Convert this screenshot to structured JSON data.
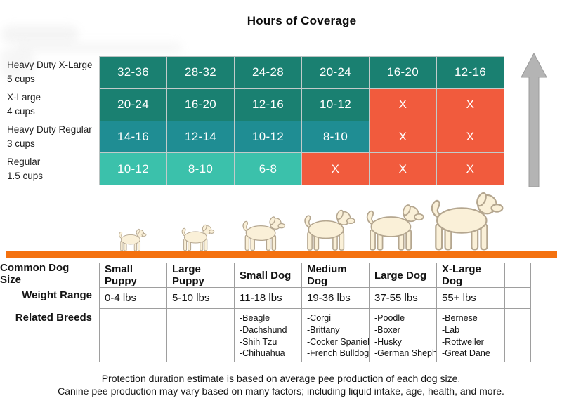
{
  "title": "Hours of Coverage",
  "colors": {
    "teal_dark": "#1a8071",
    "teal_mid": "#1f8d93",
    "teal_light": "#3bc1ab",
    "na_cell": "#f15b3d",
    "ground_bar": "#f4710f",
    "arrow_gray": "#b4b4b4",
    "table_border": "#9e9e9e",
    "dog_fill": "#faf0d8",
    "dog_outline": "#b4a68f"
  },
  "heatmap": {
    "na_symbol": "X",
    "rows": [
      {
        "label": "Heavy Duty X-Large",
        "sublabel": "5 cups",
        "color": "#1a8071",
        "cells": [
          "32-36",
          "28-32",
          "24-28",
          "20-24",
          "16-20",
          "12-16"
        ]
      },
      {
        "label": "X-Large",
        "sublabel": "4 cups",
        "color": "#1a8071",
        "cells": [
          "20-24",
          "16-20",
          "12-16",
          "10-12",
          "X",
          "X"
        ]
      },
      {
        "label": "Heavy Duty Regular",
        "sublabel": "3 cups",
        "color": "#1f8d93",
        "cells": [
          "14-16",
          "12-14",
          "10-12",
          "8-10",
          "X",
          "X"
        ]
      },
      {
        "label": "Regular",
        "sublabel": "1.5 cups",
        "color": "#3bc1ab",
        "cells": [
          "10-12",
          "8-10",
          "6-8",
          "X",
          "X",
          "X"
        ]
      }
    ]
  },
  "dogs": [
    "small-puppy-dog-illustration",
    "large-puppy-dog-illustration",
    "small-dog-illustration",
    "medium-dog-illustration",
    "large-dog-illustration",
    "x-large-dog-illustration"
  ],
  "dog_table": {
    "row_labels": [
      "Common Dog Size",
      "Weight Range",
      "Related Breeds"
    ],
    "columns": [
      {
        "name": "Small Puppy",
        "weight": "0-4 lbs",
        "breeds": []
      },
      {
        "name": "Large Puppy",
        "weight": "5-10 lbs",
        "breeds": []
      },
      {
        "name": "Small Dog",
        "weight": "11-18 lbs",
        "breeds": [
          "-Beagle",
          "-Dachshund",
          "-Shih Tzu",
          "-Chihuahua"
        ]
      },
      {
        "name": "Medium Dog",
        "weight": "19-36 lbs",
        "breeds": [
          "-Corgi",
          "-Brittany",
          "-Cocker Spaniel",
          "-French Bulldog"
        ]
      },
      {
        "name": "Large Dog",
        "weight": "37-55 lbs",
        "breeds": [
          "-Poodle",
          "-Boxer",
          "-Husky",
          "-German Shepherd"
        ]
      },
      {
        "name": "X-Large Dog",
        "weight": "55+ lbs",
        "breeds": [
          "-Bernese",
          "-Lab",
          "-Rottweiler",
          "-Great Dane"
        ]
      }
    ]
  },
  "footer": {
    "line1": "Protection duration estimate is based on average pee production of each dog size.",
    "line2": "Canine pee production may vary based on many factors; including liquid intake, age, health, and more."
  },
  "chart_data": [
    {
      "type": "heatmap",
      "title": "Hours of Coverage",
      "rows": [
        "Heavy Duty X-Large (5 cups)",
        "X-Large (4 cups)",
        "Heavy Duty Regular (3 cups)",
        "Regular (1.5 cups)"
      ],
      "columns": [
        "Small Puppy",
        "Large Puppy",
        "Small Dog",
        "Medium Dog",
        "Large Dog",
        "X-Large Dog"
      ],
      "values": [
        [
          "32-36",
          "28-32",
          "24-28",
          "20-24",
          "16-20",
          "12-16"
        ],
        [
          "20-24",
          "16-20",
          "12-16",
          "10-12",
          "X",
          "X"
        ],
        [
          "14-16",
          "12-14",
          "10-12",
          "8-10",
          "X",
          "X"
        ],
        [
          "10-12",
          "8-10",
          "6-8",
          "X",
          "X",
          "X"
        ]
      ],
      "value_unit": "hours",
      "na_symbol": "X",
      "na_meaning": "not covered",
      "legend_hint": "gray arrow on right pointing up = more coverage toward larger pad sizes"
    },
    {
      "type": "table",
      "headers": [
        "Common Dog Size",
        "Small Puppy",
        "Large Puppy",
        "Small Dog",
        "Medium Dog",
        "Large Dog",
        "X-Large Dog"
      ],
      "rows": [
        [
          "Weight Range",
          "0-4 lbs",
          "5-10 lbs",
          "11-18 lbs",
          "19-36 lbs",
          "37-55 lbs",
          "55+ lbs"
        ],
        [
          "Related Breeds",
          "",
          "",
          "-Beagle -Dachshund -Shih Tzu -Chihuahua",
          "-Corgi -Brittany -Cocker Spaniel -French Bulldog",
          "-Poodle -Boxer -Husky -German Shepherd",
          "-Bernese -Lab -Rottweiler -Great Dane"
        ]
      ]
    }
  ]
}
